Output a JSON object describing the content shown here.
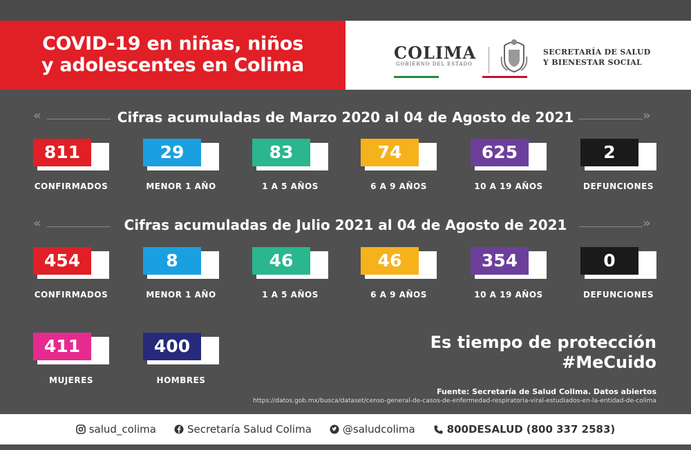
{
  "header": {
    "title_line1": "COVID-19 en niñas, niños",
    "title_line2": "y adolescentes en Colima",
    "logo_name": "COLIMA",
    "logo_sub": "GOBIERNO DEL ESTADO",
    "dept_line1": "SECRETARÍA DE SALUD",
    "dept_line2": "Y BIENESTAR SOCIAL"
  },
  "section1": {
    "title": "Cifras acumuladas de Marzo 2020 al 04 de Agosto de 2021",
    "stats": [
      {
        "value": "811",
        "label": "CONFIRMADOS",
        "color": "#e01f26"
      },
      {
        "value": "29",
        "label": "MENOR 1 AÑO",
        "color": "#1aa0e0"
      },
      {
        "value": "83",
        "label": "1 A 5 AÑOS",
        "color": "#2ab68f"
      },
      {
        "value": "74",
        "label": "6 A 9 AÑOS",
        "color": "#f6b21b"
      },
      {
        "value": "625",
        "label": "10 A 19 AÑOS",
        "color": "#6d3f9c"
      },
      {
        "value": "2",
        "label": "DEFUNCIONES",
        "color": "#1a1a1a"
      }
    ]
  },
  "section2": {
    "title": "Cifras acumuladas de Julio 2021 al 04 de Agosto de 2021",
    "stats": [
      {
        "value": "454",
        "label": "CONFIRMADOS",
        "color": "#e01f26"
      },
      {
        "value": "8",
        "label": "MENOR 1 AÑO",
        "color": "#1aa0e0"
      },
      {
        "value": "46",
        "label": "1 A 5 AÑOS",
        "color": "#2ab68f"
      },
      {
        "value": "46",
        "label": "6 A 9 AÑOS",
        "color": "#f6b21b"
      },
      {
        "value": "354",
        "label": "10 A 19 AÑOS",
        "color": "#6d3f9c"
      },
      {
        "value": "0",
        "label": "DEFUNCIONES",
        "color": "#1a1a1a"
      }
    ]
  },
  "gender": [
    {
      "value": "411",
      "label": "MUJERES",
      "color": "#e52b8e"
    },
    {
      "value": "400",
      "label": "HOMBRES",
      "color": "#272a7a"
    }
  ],
  "slogan": {
    "line1": "Es tiempo de protección",
    "line2": "#MeCuido"
  },
  "source": {
    "line1": "Fuente: Secretaría de Salud Colima. Datos abiertos",
    "url": "https://datos.gob.mx/busca/dataset/censo-general-de-casos-de-enfermedad-respiratoria-viral-estudiados-en-la-entidad-de-colima"
  },
  "footer": {
    "instagram": "salud_colima",
    "facebook": "Secretaría Salud Colima",
    "twitter": "@saludcolima",
    "phone_bold": "800DESALUD",
    "phone_number": "(800 337 2583)"
  }
}
